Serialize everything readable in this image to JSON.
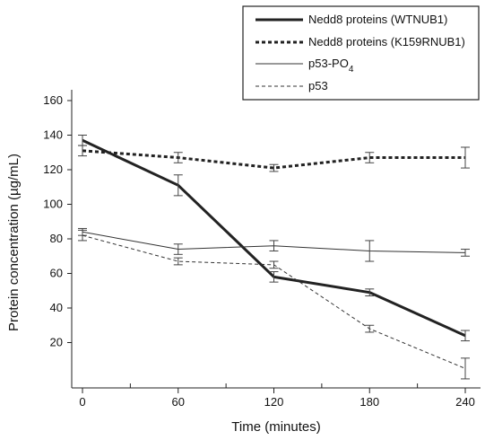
{
  "chart_data": {
    "type": "line",
    "title": "",
    "xlabel": "Time (minutes)",
    "ylabel": "Protein concentration (µg/mL)",
    "x": [
      0,
      60,
      120,
      180,
      240
    ],
    "xticks": [
      0,
      60,
      120,
      180,
      240
    ],
    "yticks": [
      20,
      40,
      60,
      80,
      100,
      120,
      140,
      160
    ],
    "xlim": [
      -5,
      245
    ],
    "ylim": [
      0,
      160
    ],
    "grid": false,
    "legend_position": "top-right",
    "series": [
      {
        "name": "Nedd8 proteins (WTNUB1)",
        "values": [
          137,
          111,
          58,
          49,
          24
        ],
        "errors": [
          3,
          6,
          3,
          2,
          3
        ],
        "style": "solid-thick",
        "color": "#222222"
      },
      {
        "name": "Nedd8 proteins (K159RNUB1)",
        "values": [
          131,
          127,
          121,
          127,
          127
        ],
        "errors": [
          3,
          3,
          2,
          3,
          6
        ],
        "style": "dotted-thick",
        "color": "#222222"
      },
      {
        "name": "p53-PO",
        "name_subscript": "4",
        "values": [
          84,
          74,
          76,
          73,
          72
        ],
        "errors": [
          2,
          3,
          3,
          6,
          2
        ],
        "style": "solid-thin",
        "color": "#333333"
      },
      {
        "name": "p53",
        "values": [
          82,
          67,
          65,
          28,
          5
        ],
        "errors": [
          3,
          2,
          2,
          2,
          6
        ],
        "style": "dashed-thin",
        "color": "#333333"
      }
    ]
  }
}
